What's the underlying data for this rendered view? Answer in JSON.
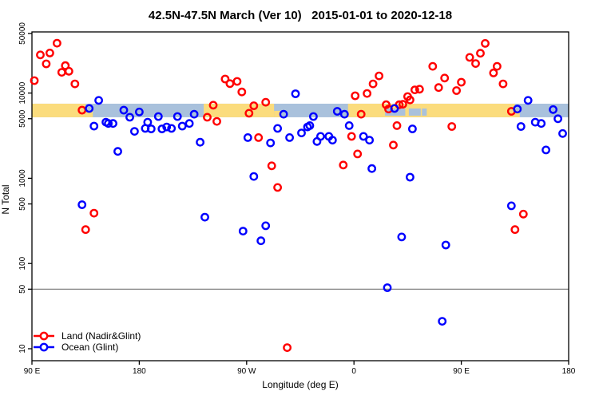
{
  "title": "42.5N-47.5N March (Ver 10)   2015-01-01 to 2020-12-18",
  "chart_data": {
    "type": "scatter",
    "title": "42.5N-47.5N March (Ver 10)   2015-01-01 to 2020-12-18",
    "xlabel": "Longitude (deg E)",
    "ylabel": "N Total",
    "y_scale": "log",
    "ylim": [
      10,
      50000
    ],
    "x_axis_note": "longitude wrapped eastward, 90E to 180 spanning 450 degrees",
    "x_range_deg": [
      90,
      540
    ],
    "grid": false,
    "legend_position": "bottom-left",
    "x_ticks": [
      {
        "deg": 90,
        "label": "90 E"
      },
      {
        "deg": 180,
        "label": "180"
      },
      {
        "deg": 270,
        "label": "90 W"
      },
      {
        "deg": 360,
        "label": "0"
      },
      {
        "deg": 450,
        "label": "90 E"
      },
      {
        "deg": 540,
        "label": "180"
      }
    ],
    "y_ticks": [
      {
        "value": 10,
        "label": "10"
      },
      {
        "value": 50,
        "label": "50"
      },
      {
        "value": 100,
        "label": "100"
      },
      {
        "value": 500,
        "label": "500"
      },
      {
        "value": 1000,
        "label": "1000"
      },
      {
        "value": 5000,
        "label": "5000"
      },
      {
        "value": 10000,
        "label": "10000"
      },
      {
        "value": 50000,
        "label": "50000"
      }
    ],
    "reference_line": {
      "value": 50,
      "color": "#808080"
    },
    "surface_band": {
      "value_low": 5200,
      "value_high": 7500,
      "land_color": "#fbdc7d",
      "ocean_color": "#a9c1dc",
      "land_segments_deg": [
        [
          90,
          135
        ],
        [
          234,
          293
        ],
        [
          355,
          495
        ]
      ],
      "inland_water_patches_deg": [
        [
          386,
          403
        ],
        [
          406,
          416
        ],
        [
          417,
          421
        ]
      ],
      "coastal_land_patches_deg": [
        [
          135,
          141
        ],
        [
          293,
          299
        ],
        [
          490,
          499
        ]
      ]
    },
    "series": [
      {
        "name": "Land (Nadir&Glint)",
        "color": "#ff0000",
        "marker": "open-circle",
        "points": [
          [
            92,
            14000
          ],
          [
            97,
            28000
          ],
          [
            102,
            22000
          ],
          [
            105,
            29500
          ],
          [
            111,
            38500
          ],
          [
            115,
            17500
          ],
          [
            118,
            21000
          ],
          [
            121,
            18000
          ],
          [
            126,
            12800
          ],
          [
            132,
            6300
          ],
          [
            135,
            250
          ],
          [
            142,
            390
          ],
          [
            237,
            5200
          ],
          [
            242,
            7200
          ],
          [
            245,
            4650
          ],
          [
            252,
            14600
          ],
          [
            256,
            12900
          ],
          [
            262,
            13700
          ],
          [
            266,
            10300
          ],
          [
            272,
            5800
          ],
          [
            276,
            7100
          ],
          [
            280,
            3000
          ],
          [
            286,
            7800
          ],
          [
            291,
            1400
          ],
          [
            296,
            780
          ],
          [
            304,
            10.3
          ],
          [
            351,
            1430
          ],
          [
            358,
            3100
          ],
          [
            361,
            9300
          ],
          [
            363,
            1930
          ],
          [
            366,
            5650
          ],
          [
            371,
            9900
          ],
          [
            376,
            12800
          ],
          [
            381,
            15900
          ],
          [
            387,
            7300
          ],
          [
            389,
            6500
          ],
          [
            393,
            2450
          ],
          [
            396,
            4150
          ],
          [
            398,
            7300
          ],
          [
            401,
            7400
          ],
          [
            405,
            9100
          ],
          [
            407,
            8300
          ],
          [
            411,
            10900
          ],
          [
            415,
            11100
          ],
          [
            426,
            20600
          ],
          [
            431,
            11600
          ],
          [
            436,
            15000
          ],
          [
            442,
            4050
          ],
          [
            446,
            10700
          ],
          [
            450,
            13400
          ],
          [
            457,
            26200
          ],
          [
            462,
            22200
          ],
          [
            466,
            29300
          ],
          [
            470,
            38200
          ],
          [
            477,
            17200
          ],
          [
            480,
            20600
          ],
          [
            485,
            12800
          ],
          [
            492,
            6100
          ],
          [
            495,
            250
          ],
          [
            502,
            380
          ]
        ]
      },
      {
        "name": "Ocean (Glint)",
        "color": "#0000ff",
        "marker": "open-circle",
        "points": [
          [
            132,
            490
          ],
          [
            138,
            6600
          ],
          [
            142,
            4100
          ],
          [
            146,
            8200
          ],
          [
            152,
            4550
          ],
          [
            154,
            4400
          ],
          [
            158,
            4400
          ],
          [
            162,
            2070
          ],
          [
            167,
            6300
          ],
          [
            172,
            5200
          ],
          [
            176,
            3550
          ],
          [
            180,
            6000
          ],
          [
            185,
            3850
          ],
          [
            187,
            4550
          ],
          [
            190,
            3800
          ],
          [
            196,
            5300
          ],
          [
            199,
            3800
          ],
          [
            203,
            4000
          ],
          [
            207,
            3850
          ],
          [
            212,
            5300
          ],
          [
            216,
            4100
          ],
          [
            222,
            4400
          ],
          [
            226,
            5650
          ],
          [
            231,
            2650
          ],
          [
            235,
            350
          ],
          [
            267,
            240
          ],
          [
            271,
            3000
          ],
          [
            276,
            1050
          ],
          [
            282,
            185
          ],
          [
            286,
            277
          ],
          [
            290,
            2600
          ],
          [
            296,
            3850
          ],
          [
            301,
            5650
          ],
          [
            306,
            3000
          ],
          [
            311,
            9800
          ],
          [
            316,
            3400
          ],
          [
            321,
            4000
          ],
          [
            323,
            4150
          ],
          [
            326,
            5300
          ],
          [
            329,
            2700
          ],
          [
            332,
            3100
          ],
          [
            339,
            3100
          ],
          [
            342,
            2800
          ],
          [
            346,
            6100
          ],
          [
            352,
            5650
          ],
          [
            356,
            4150
          ],
          [
            368,
            3100
          ],
          [
            373,
            2800
          ],
          [
            375,
            1300
          ],
          [
            388,
            52
          ],
          [
            394,
            6600
          ],
          [
            400,
            205
          ],
          [
            407,
            1030
          ],
          [
            409,
            3800
          ],
          [
            434,
            21
          ],
          [
            437,
            165
          ],
          [
            492,
            475
          ],
          [
            497,
            6500
          ],
          [
            500,
            4050
          ],
          [
            506,
            8200
          ],
          [
            512,
            4550
          ],
          [
            517,
            4400
          ],
          [
            521,
            2150
          ],
          [
            527,
            6400
          ],
          [
            531,
            5000
          ],
          [
            535,
            3350
          ]
        ]
      }
    ]
  }
}
